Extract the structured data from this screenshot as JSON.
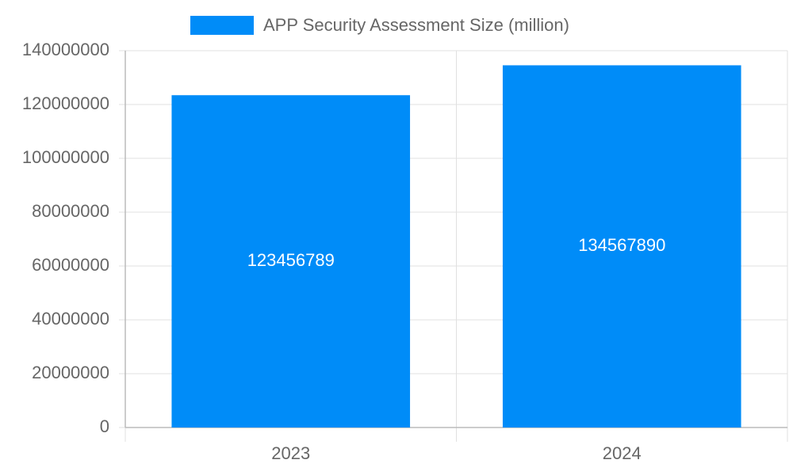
{
  "chart_data": {
    "type": "bar",
    "categories": [
      "2023",
      "2024"
    ],
    "series": [
      {
        "name": "APP Security Assessment Size (million)",
        "color": "#008cf8",
        "values": [
          123456789,
          134567890
        ]
      }
    ],
    "ylim": [
      0,
      140000000
    ],
    "yticks": [
      0,
      20000000,
      40000000,
      60000000,
      80000000,
      100000000,
      120000000,
      140000000
    ],
    "grid": true
  }
}
